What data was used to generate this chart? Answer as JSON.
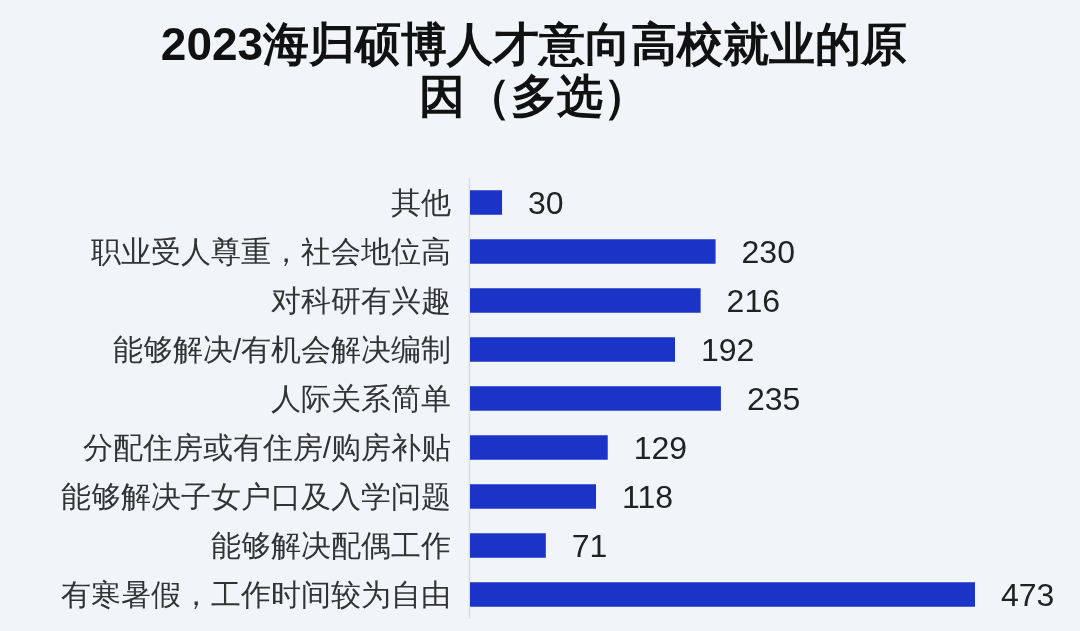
{
  "chart_data": {
    "type": "bar",
    "orientation": "horizontal",
    "title": "2023海归硕博人才意向高校就业的原因（多选）",
    "categories": [
      "其他",
      "职业受人尊重，社会地位高",
      "对科研有兴趣",
      "能够解决/有机会解决编制",
      "人际关系简单",
      "分配住房或有住房/购房补贴",
      "能够解决子女户口及入学问题",
      "能够解决配偶工作",
      "有寒暑假，工作时间较为自由"
    ],
    "values": [
      30,
      230,
      216,
      192,
      235,
      129,
      118,
      71,
      473
    ],
    "color": "#1b33c6",
    "data_labels": true
  }
}
